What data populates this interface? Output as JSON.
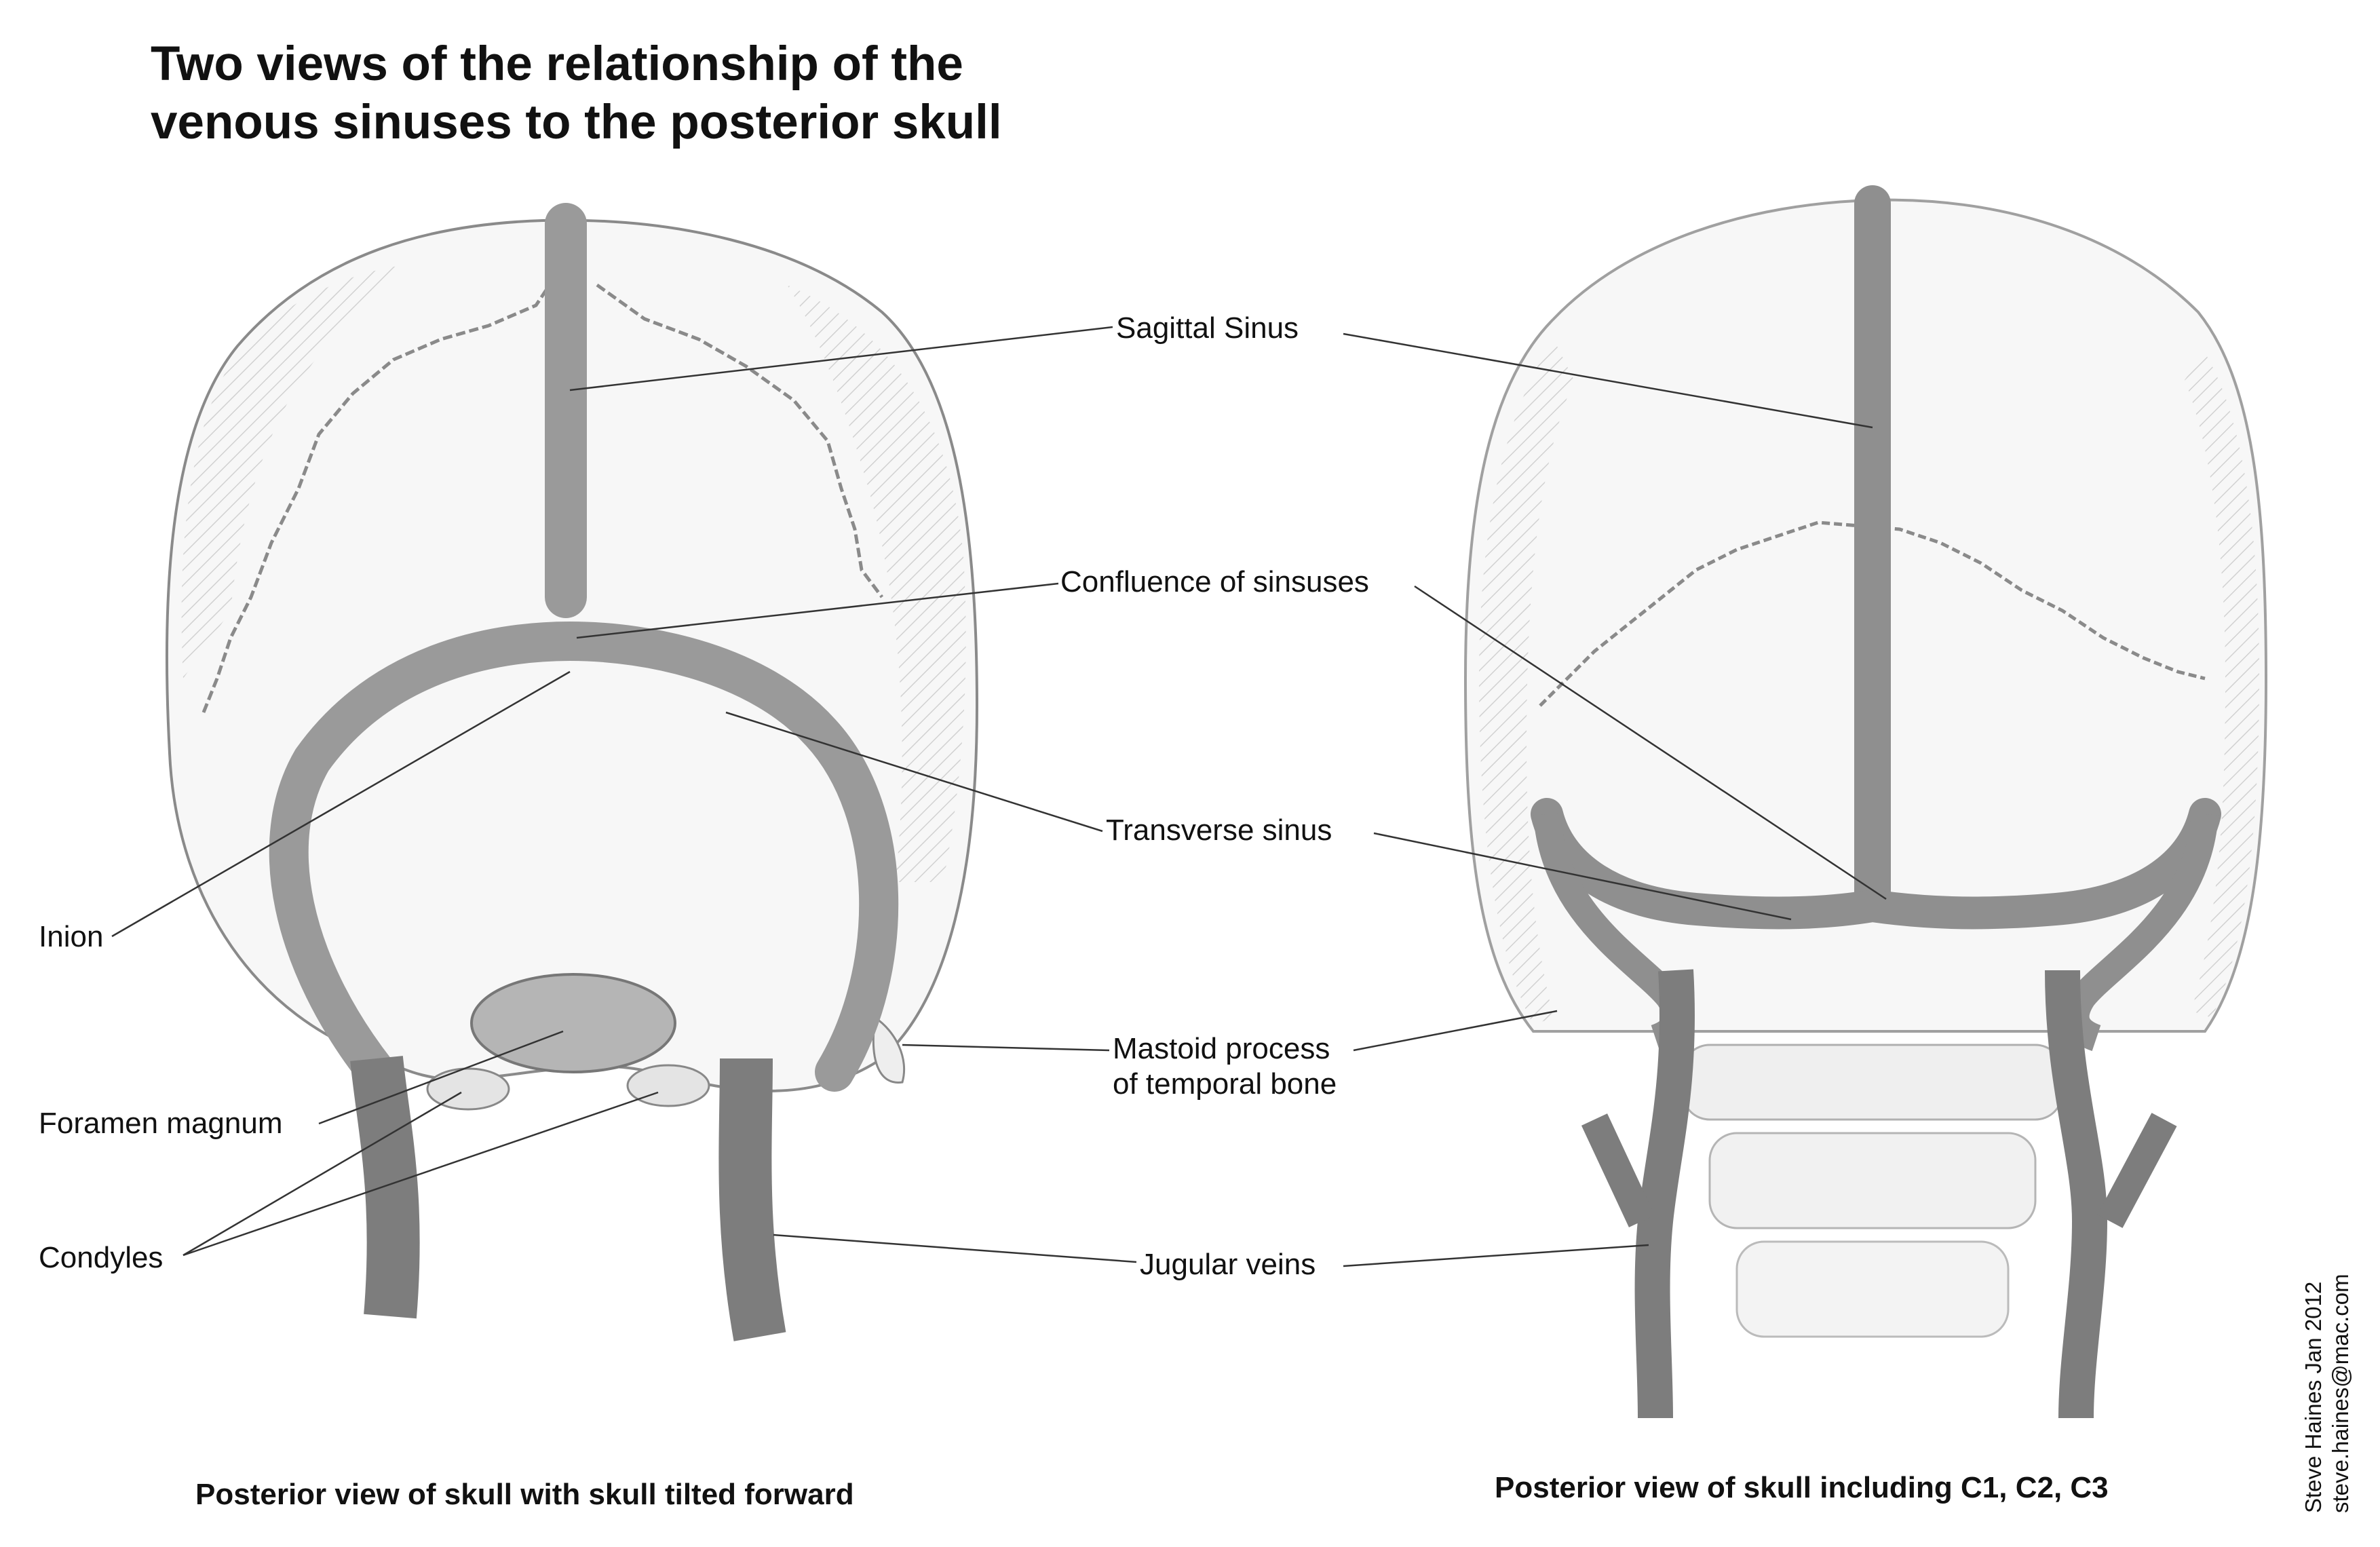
{
  "title": {
    "line1": "Two views of the relationship of the",
    "line2": "venous sinuses to the posterior skull"
  },
  "labels": {
    "sagittal_sinus": "Sagittal Sinus",
    "confluence": "Confluence of sinsuses",
    "transverse_sinus": "Transverse sinus",
    "mastoid_line1": "Mastoid process",
    "mastoid_line2": "of temporal bone",
    "jugular_veins": "Jugular veins",
    "inion": "Inion",
    "foramen_magnum": "Foramen magnum",
    "condyles": "Condyles"
  },
  "captions": {
    "left": "Posterior view of skull with skull tilted forward",
    "right": "Posterior view of skull including C1, C2, C3"
  },
  "credit": {
    "line1": "Steve Haines Jan 2012",
    "line2": "steve.haines@mac.com"
  },
  "colors": {
    "sinus": "#9a9a9a",
    "jugular": "#7d7d7d",
    "skull_outline": "#8a8a8a",
    "leader_line": "#333333"
  }
}
